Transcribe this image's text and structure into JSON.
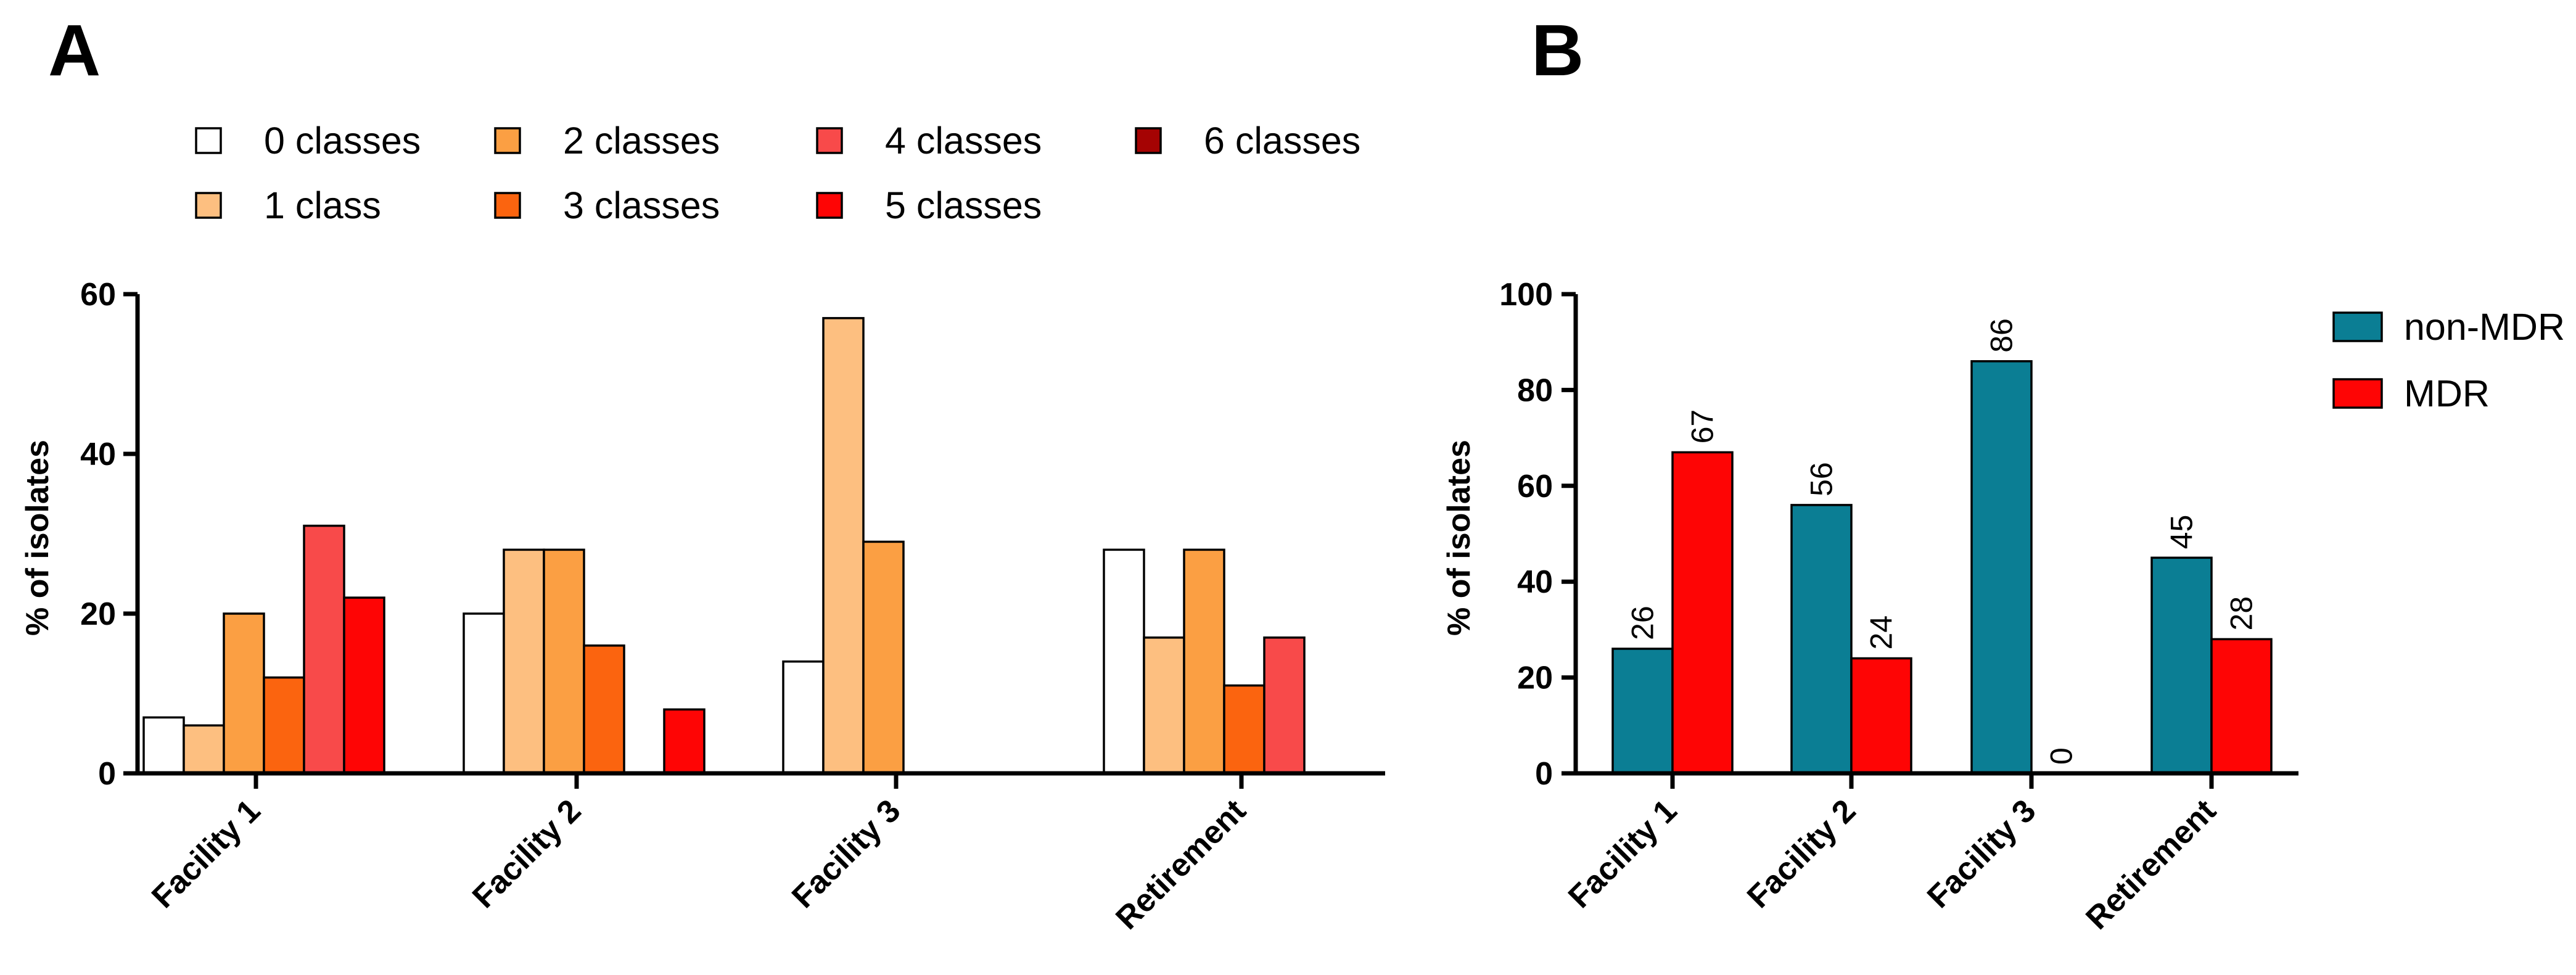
{
  "chart_data": [
    {
      "panel": "A",
      "type": "bar",
      "title": "",
      "xlabel": "",
      "ylabel": "% of isolates",
      "ylim": [
        0,
        60
      ],
      "yticks": [
        "0",
        "20",
        "40",
        "60"
      ],
      "categories": [
        "Facility 1",
        "Facility 2",
        "Facility 3",
        "Retirement"
      ],
      "legend_position": "top",
      "series": [
        {
          "name": "0 classes",
          "color": "#ffffff",
          "values": [
            7,
            20,
            14,
            28
          ]
        },
        {
          "name": "1 class",
          "color": "#fdbf80",
          "values": [
            6,
            28,
            57,
            17
          ]
        },
        {
          "name": "2 classes",
          "color": "#fb9f43",
          "values": [
            20,
            28,
            29,
            28
          ]
        },
        {
          "name": "3 classes",
          "color": "#fb640f",
          "values": [
            12,
            16,
            0,
            11
          ]
        },
        {
          "name": "4 classes",
          "color": "#f84a4a",
          "values": [
            31,
            0,
            0,
            17
          ]
        },
        {
          "name": "5 classes",
          "color": "#fe0505",
          "values": [
            22,
            8,
            0,
            0
          ]
        },
        {
          "name": "6 classes",
          "color": "#a50303",
          "values": [
            0,
            0,
            0,
            0
          ]
        }
      ]
    },
    {
      "panel": "B",
      "type": "bar",
      "title": "",
      "xlabel": "",
      "ylabel": "% of isolates",
      "ylim": [
        0,
        100
      ],
      "yticks": [
        "0",
        "20",
        "40",
        "60",
        "80",
        "100"
      ],
      "categories": [
        "Facility 1",
        "Facility 2",
        "Facility 3",
        "Retirement"
      ],
      "legend_position": "top-right",
      "series": [
        {
          "name": "non-MDR",
          "color": "#0b7e94",
          "values": [
            26,
            56,
            86,
            45
          ],
          "labels": [
            "26",
            "56",
            "86",
            "45"
          ]
        },
        {
          "name": "MDR",
          "color": "#fe0505",
          "values": [
            67,
            24,
            0,
            28
          ],
          "labels": [
            "67",
            "24",
            "0",
            "28"
          ]
        }
      ]
    }
  ]
}
